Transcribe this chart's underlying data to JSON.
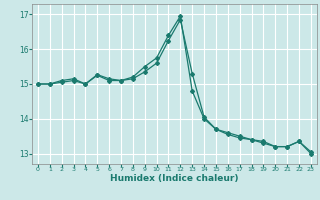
{
  "title": "",
  "xlabel": "Humidex (Indice chaleur)",
  "ylabel": "",
  "background_color": "#cce8e8",
  "grid_color": "#ffffff",
  "line_color": "#1a7a6e",
  "xlim": [
    -0.5,
    23.5
  ],
  "ylim": [
    12.7,
    17.3
  ],
  "yticks": [
    13,
    14,
    15,
    16,
    17
  ],
  "xticks": [
    0,
    1,
    2,
    3,
    4,
    5,
    6,
    7,
    8,
    9,
    10,
    11,
    12,
    13,
    14,
    15,
    16,
    17,
    18,
    19,
    20,
    21,
    22,
    23
  ],
  "line1_x": [
    0,
    1,
    2,
    3,
    4,
    5,
    6,
    7,
    8,
    9,
    10,
    11,
    12,
    13,
    14,
    15,
    16,
    17,
    18,
    19,
    20,
    21,
    22,
    23
  ],
  "line1_y": [
    15.0,
    15.0,
    15.1,
    15.15,
    15.0,
    15.25,
    15.1,
    15.1,
    15.2,
    15.5,
    15.75,
    16.4,
    16.95,
    14.8,
    14.0,
    13.7,
    13.6,
    13.5,
    13.4,
    13.3,
    13.2,
    13.2,
    13.35,
    13.0
  ],
  "line2_x": [
    0,
    1,
    2,
    3,
    4,
    5,
    6,
    7,
    8,
    9,
    10,
    11,
    12,
    13,
    14,
    15,
    16,
    17,
    18,
    19,
    20,
    21,
    22,
    23
  ],
  "line2_y": [
    15.0,
    15.0,
    15.05,
    15.1,
    15.0,
    15.27,
    15.15,
    15.1,
    15.15,
    15.35,
    15.6,
    16.25,
    16.85,
    15.3,
    14.05,
    13.7,
    13.55,
    13.45,
    13.4,
    13.35,
    13.2,
    13.2,
    13.35,
    13.05
  ]
}
